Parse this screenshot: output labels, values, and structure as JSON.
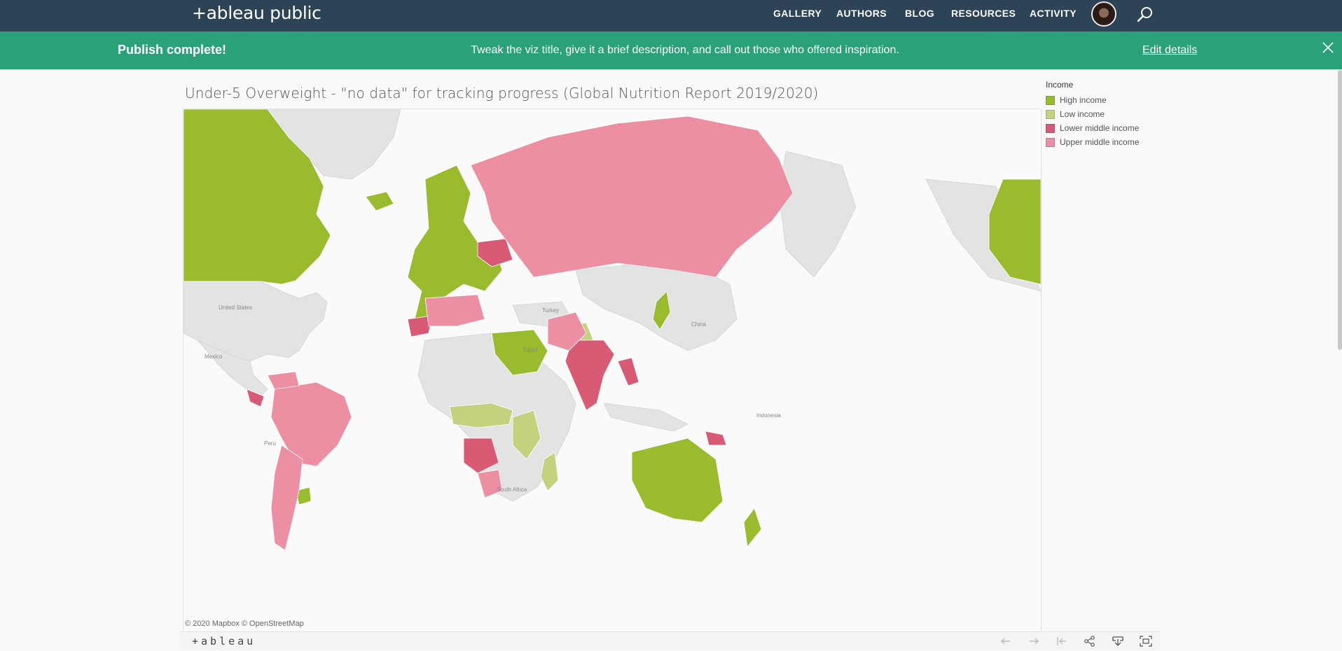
{
  "app": {
    "logo_text": "+ableau public",
    "nav": [
      "GALLERY",
      "AUTHORS",
      "BLOG",
      "RESOURCES",
      "ACTIVITY"
    ]
  },
  "banner": {
    "title": "Publish complete!",
    "message": "Tweak the viz title, give it a brief description, and call out those who offered inspiration.",
    "link": "Edit details"
  },
  "viz": {
    "title": "Under-5 Overweight - \"no data\" for tracking progress (Global Nutrition Report 2019/2020)",
    "attribution": "© 2020 Mapbox © OpenStreetMap",
    "map_labels": [
      "United States",
      "Mexico",
      "Peru",
      "Turkey",
      "Egypt",
      "China",
      "Indonesia",
      "South Africa"
    ],
    "legend": {
      "title": "Income",
      "items": [
        {
          "label": "High income",
          "color": "#9bbb2f"
        },
        {
          "label": "Low income",
          "color": "#c3d27c"
        },
        {
          "label": "Lower middle income",
          "color": "#d85a75"
        },
        {
          "label": "Upper middle income",
          "color": "#ec8fa2"
        }
      ]
    },
    "nodata_color": "#e3e3e3"
  },
  "toolbar": {
    "logo_text": "+ableau",
    "buttons": [
      "undo-icon",
      "redo-icon",
      "revert-icon",
      "share-icon",
      "download-icon",
      "fullscreen-icon"
    ]
  }
}
